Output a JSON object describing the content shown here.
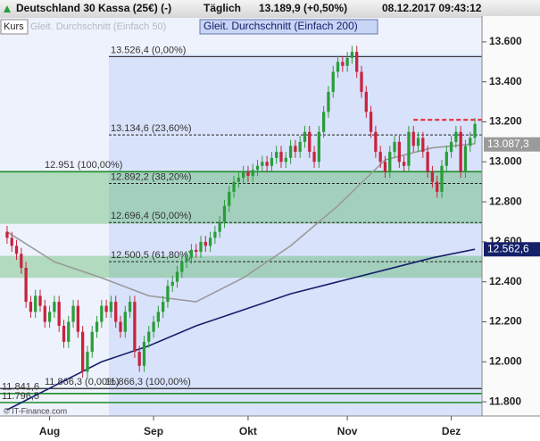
{
  "chart_data": {
    "type": "candlestick",
    "title": "Deutschland 30 Kassa (25€) (-)",
    "interval": "Täglich",
    "last": "13.189,9 (+0,50%)",
    "timestamp": "08.12.2017 09:43:12",
    "source": "© IT-Finance.com",
    "x": [
      0,
      1,
      2,
      3,
      4,
      5,
      6,
      7,
      8,
      9,
      10,
      11,
      12,
      13,
      14,
      15,
      16,
      17,
      18,
      19,
      20,
      21,
      22,
      23,
      24,
      25,
      26,
      27,
      28,
      29,
      30,
      31,
      32,
      33,
      34,
      35,
      36,
      37,
      38,
      39,
      40,
      41,
      42,
      43,
      44,
      45,
      46,
      47,
      48,
      49,
      50,
      51,
      52,
      53,
      54,
      55,
      56,
      57,
      58,
      59,
      60,
      61,
      62,
      63,
      64,
      65,
      66,
      67,
      68,
      69,
      70,
      71,
      72,
      73,
      74,
      75,
      76,
      77,
      78,
      79,
      80,
      81,
      82,
      83,
      84,
      85,
      86,
      87,
      88,
      89,
      90,
      91,
      92,
      93,
      94,
      95,
      96,
      97,
      98,
      99
    ],
    "series": [
      {
        "name": "Kurs",
        "up_color": "#2a9d3a",
        "down_color": "#c8233f",
        "open": [
          12650,
          12620,
          12580,
          12540,
          12470,
          12300,
          12250,
          12330,
          12280,
          12200,
          12250,
          12300,
          12180,
          12100,
          12200,
          12280,
          12150,
          11950,
          12050,
          12150,
          12200,
          12280,
          12250,
          12300,
          12200,
          12150,
          12250,
          12300,
          12050,
          11980,
          12100,
          12150,
          12200,
          12250,
          12300,
          12380,
          12400,
          12450,
          12500,
          12520,
          12560,
          12550,
          12600,
          12580,
          12620,
          12650,
          12700,
          12780,
          12850,
          12900,
          12920,
          12950,
          12930,
          12960,
          12980,
          13000,
          12980,
          13020,
          13050,
          13000,
          13020,
          13080,
          13050,
          13100,
          13150,
          13050,
          13000,
          13150,
          13250,
          13350,
          13450,
          13500,
          13480,
          13520,
          13550,
          13450,
          13350,
          13250,
          13150,
          13050,
          13000,
          12950,
          13050,
          13100,
          13000,
          12980,
          13150,
          13080,
          13120,
          13050,
          12950,
          12900,
          12850,
          12980,
          13050,
          13100,
          13150,
          12950,
          13080,
          13120
        ],
        "high": [
          12680,
          12650,
          12610,
          12570,
          12500,
          12330,
          12360,
          12360,
          12310,
          12280,
          12330,
          12330,
          12210,
          12230,
          12310,
          12310,
          12180,
          12080,
          12180,
          12230,
          12310,
          12310,
          12330,
          12330,
          12230,
          12280,
          12330,
          12330,
          12080,
          12130,
          12180,
          12230,
          12280,
          12330,
          12410,
          12430,
          12480,
          12530,
          12550,
          12590,
          12590,
          12630,
          12630,
          12650,
          12680,
          12730,
          12810,
          12880,
          12930,
          12950,
          12980,
          12980,
          12990,
          13010,
          13030,
          13030,
          13050,
          13080,
          13080,
          13050,
          13110,
          13110,
          13130,
          13180,
          13180,
          13080,
          13180,
          13280,
          13380,
          13480,
          13530,
          13530,
          13550,
          13580,
          13580,
          13480,
          13380,
          13280,
          13180,
          13080,
          13030,
          13080,
          13130,
          13130,
          13030,
          13180,
          13180,
          13150,
          13150,
          13080,
          12980,
          12930,
          13010,
          13080,
          13130,
          13180,
          13180,
          13110,
          13150,
          13220
        ],
        "low": [
          12590,
          12550,
          12510,
          12440,
          12270,
          12220,
          12220,
          12250,
          12170,
          12170,
          12220,
          12150,
          12070,
          12070,
          12170,
          12120,
          11920,
          11920,
          12020,
          12120,
          12170,
          12220,
          12220,
          12170,
          12120,
          12120,
          12220,
          12020,
          11950,
          11950,
          12070,
          12120,
          12170,
          12220,
          12270,
          12350,
          12370,
          12420,
          12470,
          12490,
          12520,
          12520,
          12550,
          12550,
          12590,
          12620,
          12670,
          12750,
          12820,
          12870,
          12890,
          12900,
          12900,
          12930,
          12950,
          12950,
          12950,
          12990,
          12970,
          12970,
          12990,
          13020,
          13020,
          13070,
          13020,
          12970,
          12970,
          13120,
          13220,
          13320,
          13420,
          13450,
          13450,
          13490,
          13420,
          13320,
          13220,
          13120,
          13020,
          12970,
          12920,
          12920,
          13020,
          12970,
          12950,
          12950,
          13050,
          13050,
          13020,
          12920,
          12870,
          12820,
          12820,
          12950,
          13020,
          13070,
          12920,
          12920,
          13050,
          13090
        ],
        "close": [
          12620,
          12580,
          12540,
          12470,
          12300,
          12250,
          12330,
          12280,
          12200,
          12250,
          12300,
          12180,
          12100,
          12200,
          12280,
          12150,
          11950,
          12050,
          12150,
          12200,
          12280,
          12250,
          12300,
          12200,
          12150,
          12250,
          12300,
          12050,
          11980,
          12100,
          12150,
          12200,
          12250,
          12300,
          12380,
          12400,
          12450,
          12500,
          12520,
          12560,
          12550,
          12600,
          12580,
          12620,
          12650,
          12700,
          12780,
          12850,
          12900,
          12920,
          12950,
          12930,
          12960,
          12980,
          13000,
          12980,
          13020,
          13050,
          13000,
          13020,
          13080,
          13050,
          13100,
          13150,
          13050,
          13000,
          13150,
          13250,
          13350,
          13450,
          13500,
          13480,
          13520,
          13550,
          13450,
          13350,
          13250,
          13150,
          13050,
          13000,
          12950,
          13050,
          13100,
          13000,
          12980,
          13150,
          13080,
          13120,
          13050,
          12950,
          12900,
          12850,
          12980,
          13050,
          13100,
          13150,
          12950,
          13080,
          13120,
          13190
        ]
      },
      {
        "name": "Gleit. Durchschnitt (Einfach 50)",
        "type": "line",
        "color": "#9a9a9a",
        "x": [
          0,
          10,
          20,
          30,
          40,
          50,
          60,
          70,
          80,
          90,
          99
        ],
        "values": [
          12650,
          12500,
          12420,
          12330,
          12300,
          12420,
          12580,
          12780,
          13010,
          13070,
          13090
        ]
      },
      {
        "name": "Gleit. Durchschnitt (Einfach 200)",
        "type": "line",
        "color": "#15206b",
        "x": [
          0,
          10,
          20,
          30,
          40,
          50,
          60,
          70,
          80,
          90,
          99
        ],
        "values": [
          11760,
          11880,
          12000,
          12080,
          12180,
          12260,
          12340,
          12400,
          12460,
          12520,
          12563
        ]
      }
    ],
    "xlim": [
      -1.5,
      100.5
    ],
    "xticks": [
      {
        "value": 9,
        "label": "Aug"
      },
      {
        "value": 31,
        "label": "Sep"
      },
      {
        "value": 51,
        "label": "Okt"
      },
      {
        "value": 72,
        "label": "Nov"
      },
      {
        "value": 94,
        "label": "Dez"
      }
    ],
    "ylim": [
      11729,
      13729
    ],
    "yticks": [
      {
        "value": 11800,
        "label": "11.800"
      },
      {
        "value": 12000,
        "label": "12.000"
      },
      {
        "value": 12200,
        "label": "12.200"
      },
      {
        "value": 12400,
        "label": "12.400"
      },
      {
        "value": 12600,
        "label": "12.600"
      },
      {
        "value": 12800,
        "label": "12.800"
      },
      {
        "value": 13000,
        "label": "13.000"
      },
      {
        "value": 13200,
        "label": "13.200"
      },
      {
        "value": 13400,
        "label": "13.400"
      },
      {
        "value": 13600,
        "label": "13.600"
      }
    ],
    "zones": [
      {
        "from": 12690,
        "to": 12951,
        "color": "#3fae4a"
      },
      {
        "from": 12420,
        "to": 12530,
        "color": "#3fae4a"
      }
    ],
    "annotations": [
      {
        "text": "13.526,4 (0,00%)",
        "value": 13526.4,
        "color": "#222",
        "dashed": false
      },
      {
        "text": "13.134,6 (23,60%)",
        "value": 13134.6,
        "color": "#222",
        "dashed": true
      },
      {
        "text": "12.892,2 (38,20%)",
        "value": 12892.2,
        "color": "#222",
        "dashed": true
      },
      {
        "text": "12.696,4 (50,00%)",
        "value": 12696.4,
        "color": "#222",
        "dashed": true
      },
      {
        "text": "12.500,5 (61,80%)",
        "value": 12500.5,
        "color": "#222",
        "dashed": true
      },
      {
        "text": "12.951 (100,00%)",
        "value": 12951,
        "color": "#1e8c2a",
        "dashed": false
      },
      {
        "text": "11.866,3 (0,00%)",
        "value": 11866.3,
        "color": "#222",
        "dashed": false
      },
      {
        "text": "11.866,3 (100,00%)",
        "value": 11866.3,
        "color": "#222",
        "dashed": false
      },
      {
        "text": "11.841,6",
        "value": 11841.6,
        "color": "#1e8c2a",
        "dashed": false
      },
      {
        "text": "11.796,5",
        "value": 11796.5,
        "color": "#1e8c2a",
        "dashed": false
      }
    ],
    "resistance": {
      "value": 13210,
      "from": 86,
      "color": "#e8202a"
    },
    "price_labels": [
      {
        "value": 13087.3,
        "label": "13.087,3",
        "color": "#9a9a9a"
      },
      {
        "value": 12562.6,
        "label": "12.562,6",
        "color": "#15206b"
      }
    ]
  }
}
